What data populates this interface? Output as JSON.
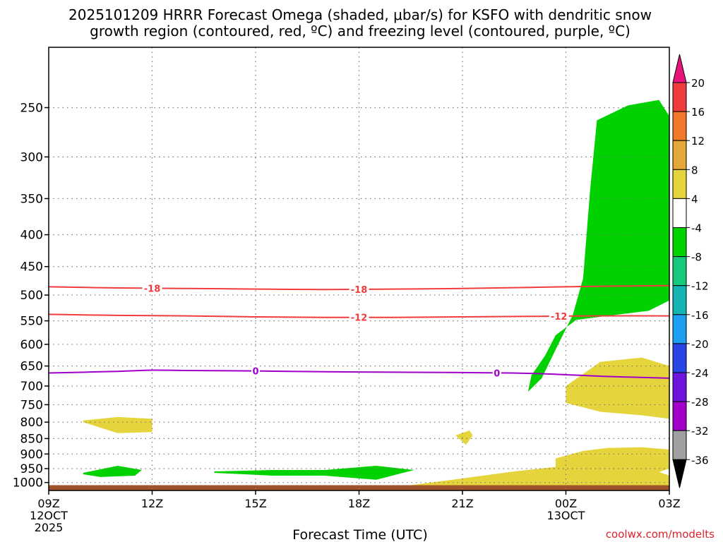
{
  "chart_data": {
    "type": "heatmap",
    "title_line1": "2025101209 HRRR Forecast Omega (shaded, μbar/s) for KSFO with dendritic snow",
    "title_line2": "growth region (contoured, red, ºC) and freezing level (contoured, purple, ºC)",
    "xlabel": "Forecast Time (UTC)",
    "x_ticks": [
      {
        "hour": 0,
        "label": "09Z",
        "sub1": "12OCT",
        "sub2": "2025"
      },
      {
        "hour": 3,
        "label": "12Z",
        "sub1": "",
        "sub2": ""
      },
      {
        "hour": 6,
        "label": "15Z",
        "sub1": "",
        "sub2": ""
      },
      {
        "hour": 9,
        "label": "18Z",
        "sub1": "",
        "sub2": ""
      },
      {
        "hour": 12,
        "label": "21Z",
        "sub1": "",
        "sub2": ""
      },
      {
        "hour": 15,
        "label": "00Z",
        "sub1": "13OCT",
        "sub2": ""
      },
      {
        "hour": 18,
        "label": "03Z",
        "sub1": "",
        "sub2": ""
      }
    ],
    "x_range_hours": [
      0,
      18
    ],
    "y_scale": "log-pressure",
    "y_range": [
      1030,
      200
    ],
    "y_ticks": [
      "250",
      "300",
      "350",
      "400",
      "450",
      "500",
      "550",
      "600",
      "650",
      "700",
      "750",
      "800",
      "850",
      "900",
      "950",
      "1000"
    ],
    "grid": true,
    "colorbar": {
      "labels": [
        "20",
        "16",
        "12",
        "8",
        "4",
        "-4",
        "-8",
        "-12",
        "-16",
        "-20",
        "-24",
        "-28",
        "-32",
        "-36"
      ],
      "boundaries": [
        24,
        20,
        16,
        12,
        8,
        4,
        -4,
        -8,
        -12,
        -16,
        -20,
        -24,
        -28,
        -32,
        -36
      ],
      "colors": [
        "#e8147c",
        "#f03c3c",
        "#f07828",
        "#e4a838",
        "#e6d43c",
        "#ffffff",
        "#00d200",
        "#18c87c",
        "#14b4b4",
        "#1ea0f0",
        "#2846e6",
        "#6e14dc",
        "#a000c8",
        "#a0a0a0",
        "#000000"
      ]
    },
    "contours": {
      "dgz": [
        {
          "level": -18,
          "label": "-18",
          "x": [
            0,
            2,
            4,
            6,
            8,
            10,
            12,
            14,
            16,
            18
          ],
          "p": [
            485,
            487,
            488,
            489,
            490,
            489,
            488,
            486,
            484,
            483
          ]
        },
        {
          "level": -12,
          "label": "-12",
          "x": [
            0,
            2,
            4,
            6,
            8,
            10,
            12,
            14,
            16,
            18
          ],
          "p": [
            537,
            539,
            540,
            542,
            543,
            543,
            542,
            541,
            540,
            540
          ]
        }
      ],
      "freezing": [
        {
          "level": 0,
          "label": "0",
          "x": [
            0,
            2,
            3,
            4,
            6,
            8,
            10,
            12,
            14,
            16,
            18
          ],
          "p": [
            667,
            663,
            660,
            661,
            662,
            664,
            665,
            666,
            668,
            675,
            680
          ]
        }
      ]
    },
    "omega_regions": [
      {
        "value": -6,
        "x": [
          15.9,
          16.8,
          17.7,
          18,
          18,
          17.4,
          16.2,
          15.3,
          14.7,
          14.4,
          14.0,
          13.9,
          14.3,
          14.7,
          15.2,
          15.5,
          15.7
        ],
        "p": [
          262,
          248,
          243,
          258,
          510,
          530,
          540,
          548,
          580,
          625,
          673,
          715,
          680,
          612,
          538,
          470,
          340
        ]
      },
      {
        "value": 6,
        "x": [
          14.7,
          15.5,
          16.2,
          17.2,
          18,
          18,
          17.0,
          15.8,
          14.9,
          14.7
        ],
        "p": [
          915,
          890,
          880,
          878,
          885,
          950,
          990,
          1000,
          995,
          960
        ]
      },
      {
        "value": 6,
        "x": [
          10.5,
          12,
          13.5,
          15,
          16.2,
          17.1,
          18,
          18,
          16.5,
          14.5,
          12.5,
          10.6
        ],
        "p": [
          1010,
          985,
          960,
          940,
          920,
          935,
          975,
          1015,
          1020,
          1022,
          1022,
          1020
        ]
      },
      {
        "value": 6,
        "x": [
          15.0,
          16.0,
          17.2,
          18,
          18,
          17.2,
          16.0,
          15.0
        ],
        "p": [
          700,
          640,
          630,
          650,
          790,
          780,
          770,
          745
        ]
      },
      {
        "value": 6,
        "x": [
          1.0,
          2.0,
          3.0,
          3.0,
          2.0,
          1.0
        ],
        "p": [
          795,
          785,
          790,
          830,
          833,
          800
        ]
      },
      {
        "value": 6,
        "x": [
          11.8,
          12.2,
          12.3,
          12.1,
          11.8
        ],
        "p": [
          840,
          825,
          840,
          870,
          840
        ]
      },
      {
        "value": -6,
        "x": [
          1.0,
          2.0,
          2.7,
          2.5,
          1.5,
          1.0
        ],
        "p": [
          965,
          940,
          955,
          975,
          980,
          970
        ]
      },
      {
        "value": -6,
        "x": [
          4.8,
          6.5,
          8.0,
          9.5,
          10.6,
          9.5,
          8,
          6.5,
          4.8
        ],
        "p": [
          960,
          955,
          955,
          940,
          955,
          990,
          975,
          975,
          965
        ]
      }
    ]
  },
  "credit": "coolwx.com/modelts"
}
